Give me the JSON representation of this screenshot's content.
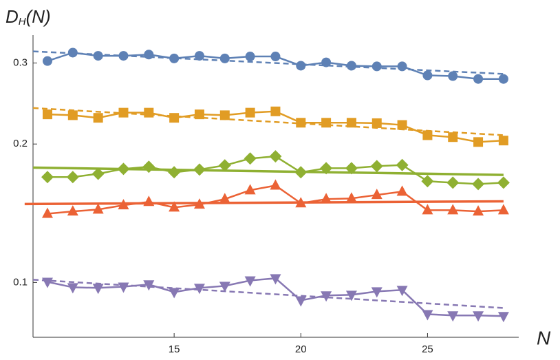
{
  "chart_data": {
    "type": "line",
    "ylabel": {
      "main": "D",
      "sub": "H",
      "rest": "(N)"
    },
    "xlabel": "N",
    "yscale": "log",
    "x": [
      10,
      11,
      12,
      13,
      14,
      15,
      16,
      17,
      18,
      19,
      20,
      21,
      22,
      23,
      24,
      25,
      26,
      27,
      28
    ],
    "xlim": [
      9.43,
      28.6
    ],
    "xticks": [
      15,
      20,
      25
    ],
    "ylim": [
      0.076,
      0.345
    ],
    "yticks": [
      0.1,
      0.2,
      0.3
    ],
    "series": [
      {
        "color": "#5e81b5",
        "marker": "circle",
        "values": [
          0.303,
          0.316,
          0.311,
          0.311,
          0.313,
          0.307,
          0.311,
          0.307,
          0.31,
          0.31,
          0.296,
          0.301,
          0.296,
          0.295,
          0.295,
          0.282,
          0.281,
          0.277,
          0.277
        ]
      },
      {
        "color": "#e19c24",
        "marker": "square",
        "values": [
          0.232,
          0.231,
          0.228,
          0.234,
          0.234,
          0.228,
          0.232,
          0.231,
          0.234,
          0.2355,
          0.2225,
          0.2225,
          0.2225,
          0.222,
          0.22,
          0.209,
          0.207,
          0.202,
          0.2035
        ]
      },
      {
        "color": "#8fb032",
        "marker": "diamond",
        "values": [
          0.1695,
          0.1695,
          0.1723,
          0.1766,
          0.1785,
          0.1736,
          0.176,
          0.1797,
          0.186,
          0.188,
          0.1736,
          0.1772,
          0.1772,
          0.179,
          0.18,
          0.166,
          0.1648,
          0.1637,
          0.1648
        ]
      },
      {
        "color": "#eb6235",
        "marker": "triangle-up",
        "values": [
          0.1411,
          0.1427,
          0.1441,
          0.1472,
          0.1497,
          0.1456,
          0.1477,
          0.1518,
          0.1587,
          0.1625,
          0.1487,
          0.1518,
          0.1523,
          0.155,
          0.1576,
          0.1436,
          0.1436,
          0.1427,
          0.1436
        ]
      },
      {
        "color": "#8778b3",
        "marker": "triangle-down",
        "values": [
          0.1003,
          0.0976,
          0.0973,
          0.0979,
          0.099,
          0.0953,
          0.0973,
          0.0983,
          0.101,
          0.1021,
          0.0914,
          0.0937,
          0.094,
          0.0956,
          0.0963,
          0.0853,
          0.0848,
          0.0848,
          0.0845
        ]
      }
    ],
    "fits": [
      {
        "color": "#5e81b5",
        "style": "dashed",
        "x": [
          9.43,
          28
        ],
        "values": [
          0.318,
          0.284
        ]
      },
      {
        "color": "#e19c24",
        "style": "dashed",
        "x": [
          9.43,
          28
        ],
        "values": [
          0.2395,
          0.209
        ]
      },
      {
        "color": "#8fb032",
        "style": "solid",
        "x": [
          9.43,
          28
        ],
        "values": [
          0.1777,
          0.1713
        ]
      },
      {
        "color": "#eb6235",
        "style": "solid",
        "x": [
          9.1,
          28
        ],
        "values": [
          0.1481,
          0.1501
        ]
      },
      {
        "color": "#8778b3",
        "style": "dashed",
        "x": [
          9.43,
          28
        ],
        "values": [
          0.1014,
          0.088
        ]
      }
    ]
  }
}
